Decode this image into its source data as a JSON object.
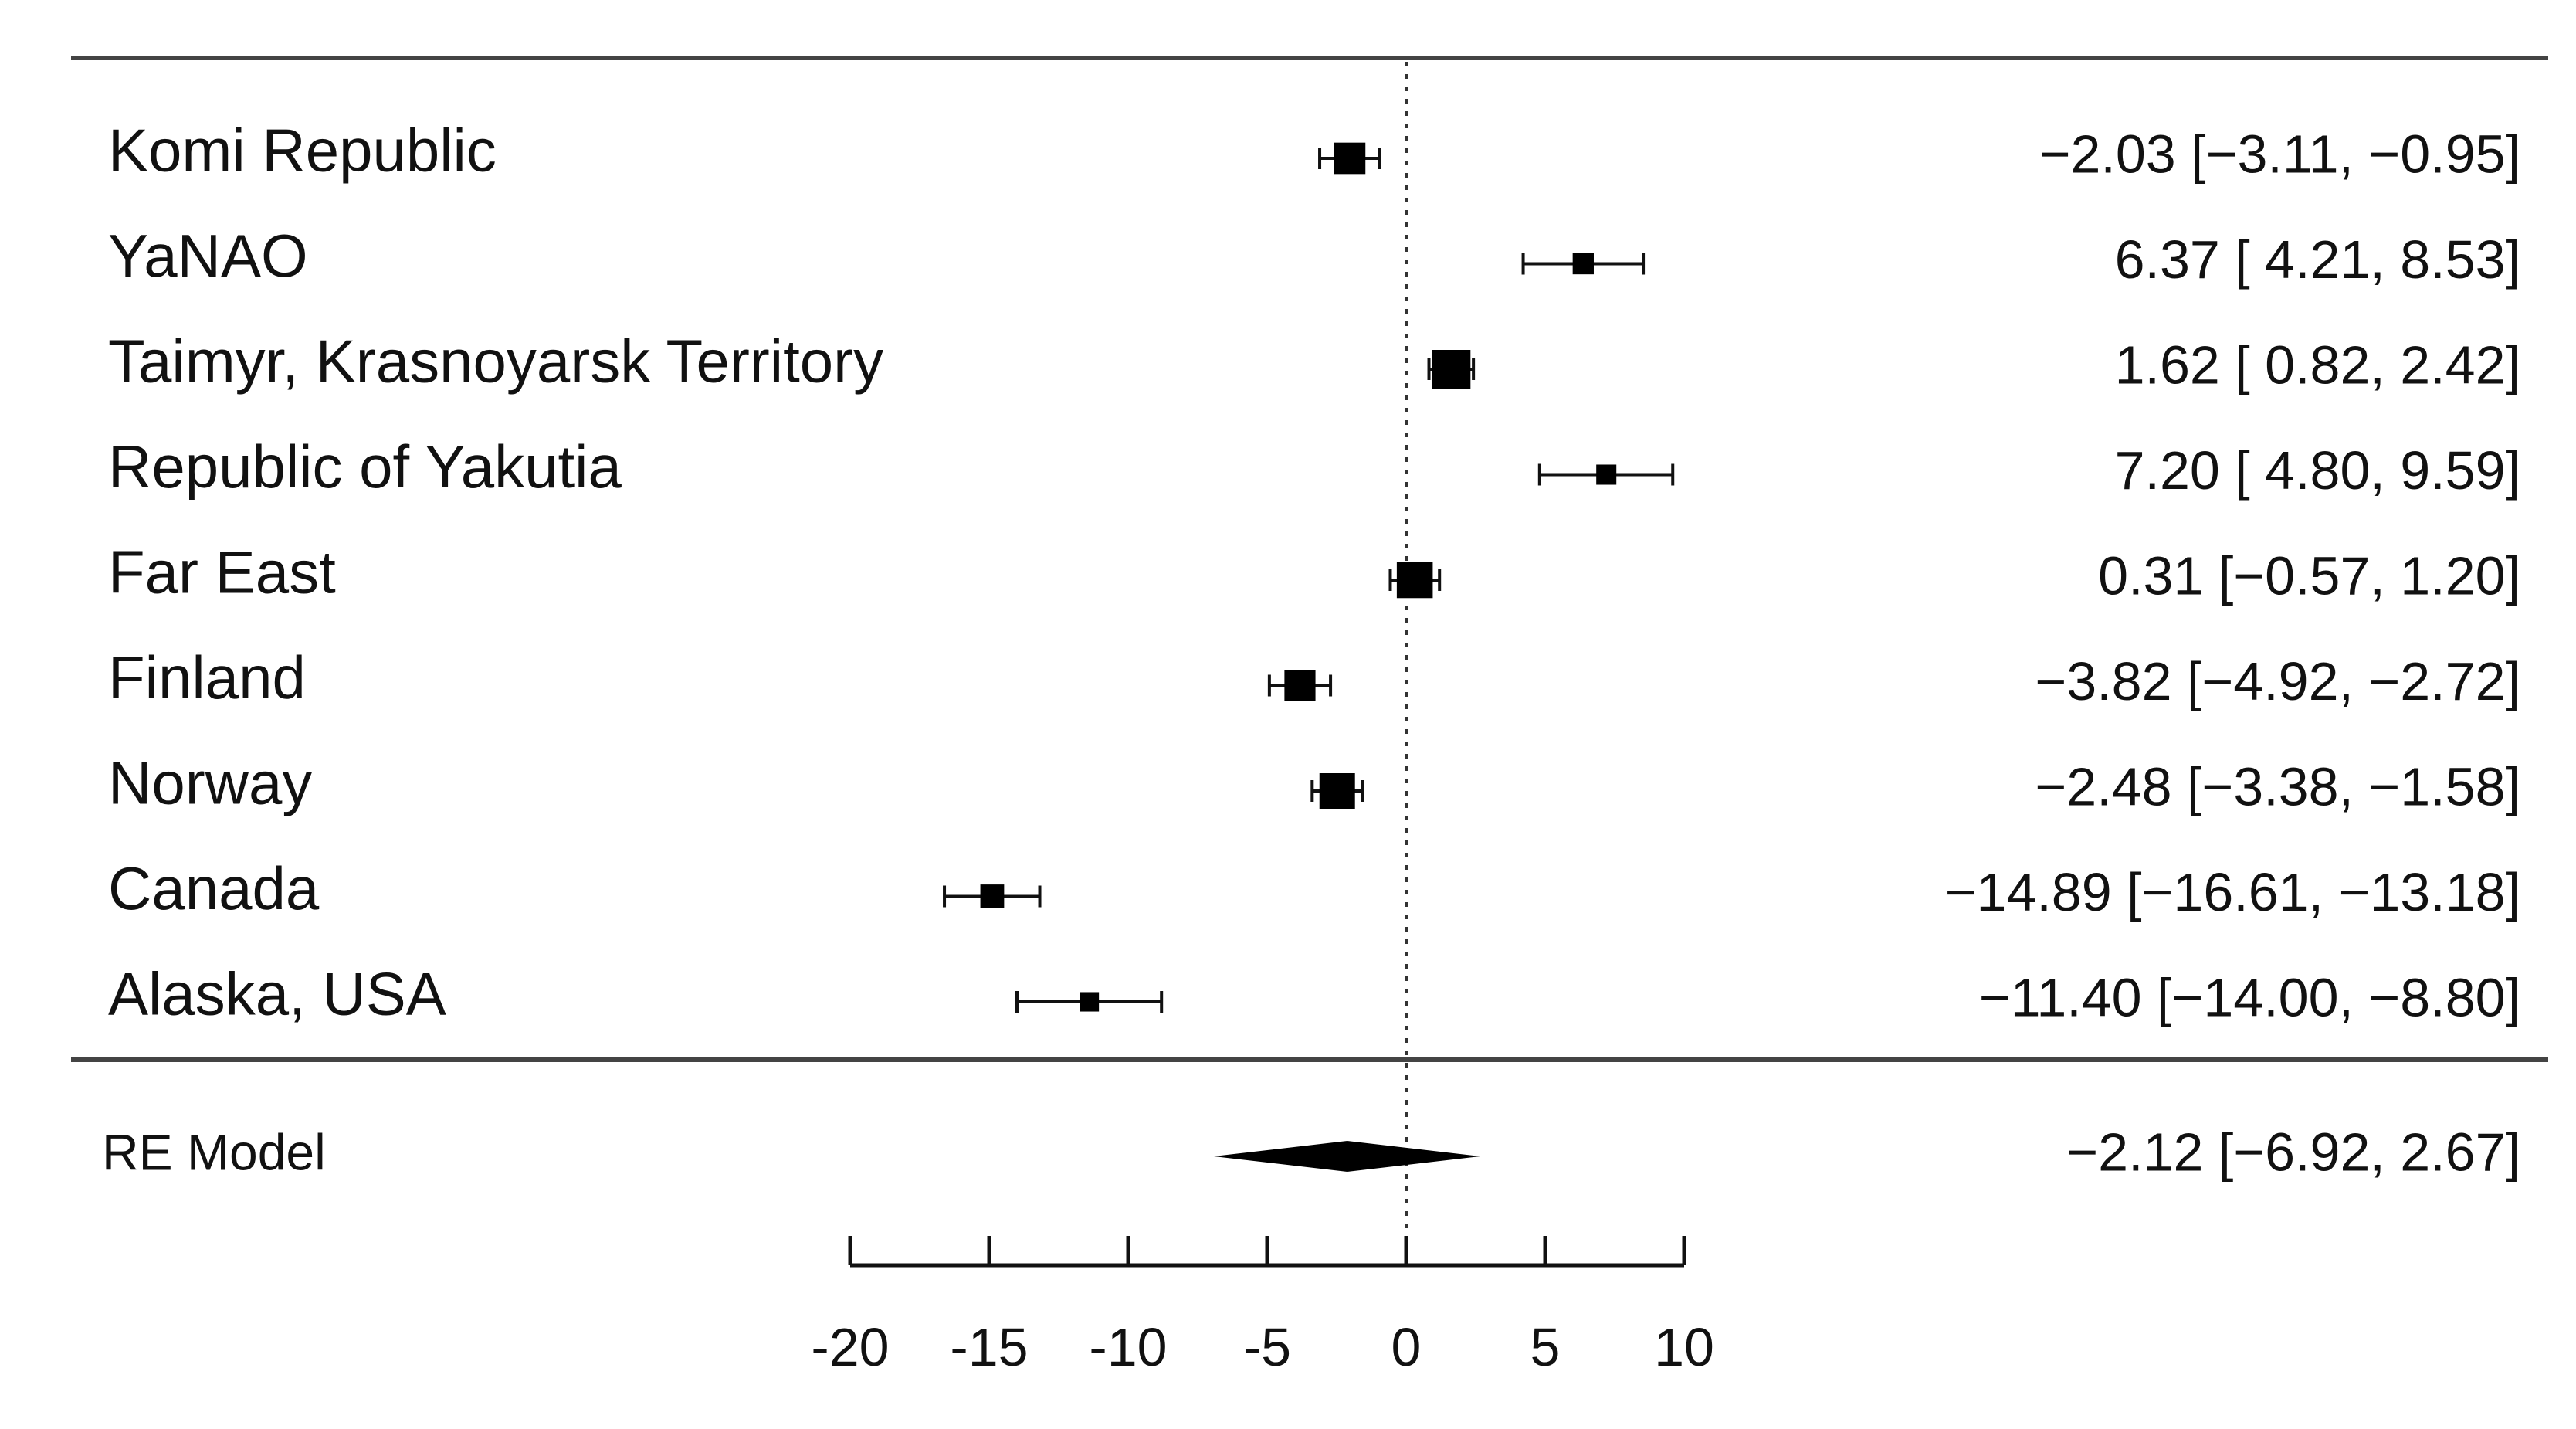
{
  "chart_data": {
    "type": "forest",
    "xlim": [
      -20,
      10
    ],
    "xticks": [
      "-20",
      "-15",
      "-10",
      "-5",
      "0",
      "5",
      "10"
    ],
    "reference_line": 0,
    "studies": [
      {
        "label": "Komi Republic",
        "estimate": -2.03,
        "ci_low": -3.11,
        "ci_high": -0.95,
        "text": "−2.03 [−3.11, −0.95]"
      },
      {
        "label": "YaNAO",
        "estimate": 6.37,
        "ci_low": 4.21,
        "ci_high": 8.53,
        "text": "6.37 [ 4.21,  8.53]"
      },
      {
        "label": "Taimyr, Krasnoyarsk Territory",
        "estimate": 1.62,
        "ci_low": 0.82,
        "ci_high": 2.42,
        "text": "1.62 [ 0.82,  2.42]"
      },
      {
        "label": "Republic of Yakutia",
        "estimate": 7.2,
        "ci_low": 4.8,
        "ci_high": 9.59,
        "text": "7.20 [ 4.80,  9.59]"
      },
      {
        "label": "Far East",
        "estimate": 0.31,
        "ci_low": -0.57,
        "ci_high": 1.2,
        "text": "0.31 [−0.57,  1.20]"
      },
      {
        "label": "Finland",
        "estimate": -3.82,
        "ci_low": -4.92,
        "ci_high": -2.72,
        "text": "−3.82 [−4.92, −2.72]"
      },
      {
        "label": "Norway",
        "estimate": -2.48,
        "ci_low": -3.38,
        "ci_high": -1.58,
        "text": "−2.48 [−3.38, −1.58]"
      },
      {
        "label": "Canada",
        "estimate": -14.89,
        "ci_low": -16.61,
        "ci_high": -13.18,
        "text": "−14.89 [−16.61, −13.18]"
      },
      {
        "label": "Alaska, USA",
        "estimate": -11.4,
        "ci_low": -14.0,
        "ci_high": -8.8,
        "text": "−11.40 [−14.00, −8.80]"
      }
    ],
    "summary": {
      "label": "RE Model",
      "estimate": -2.12,
      "ci_low": -6.92,
      "ci_high": 2.67,
      "text": "−2.12 [−6.92,  2.67]"
    }
  }
}
